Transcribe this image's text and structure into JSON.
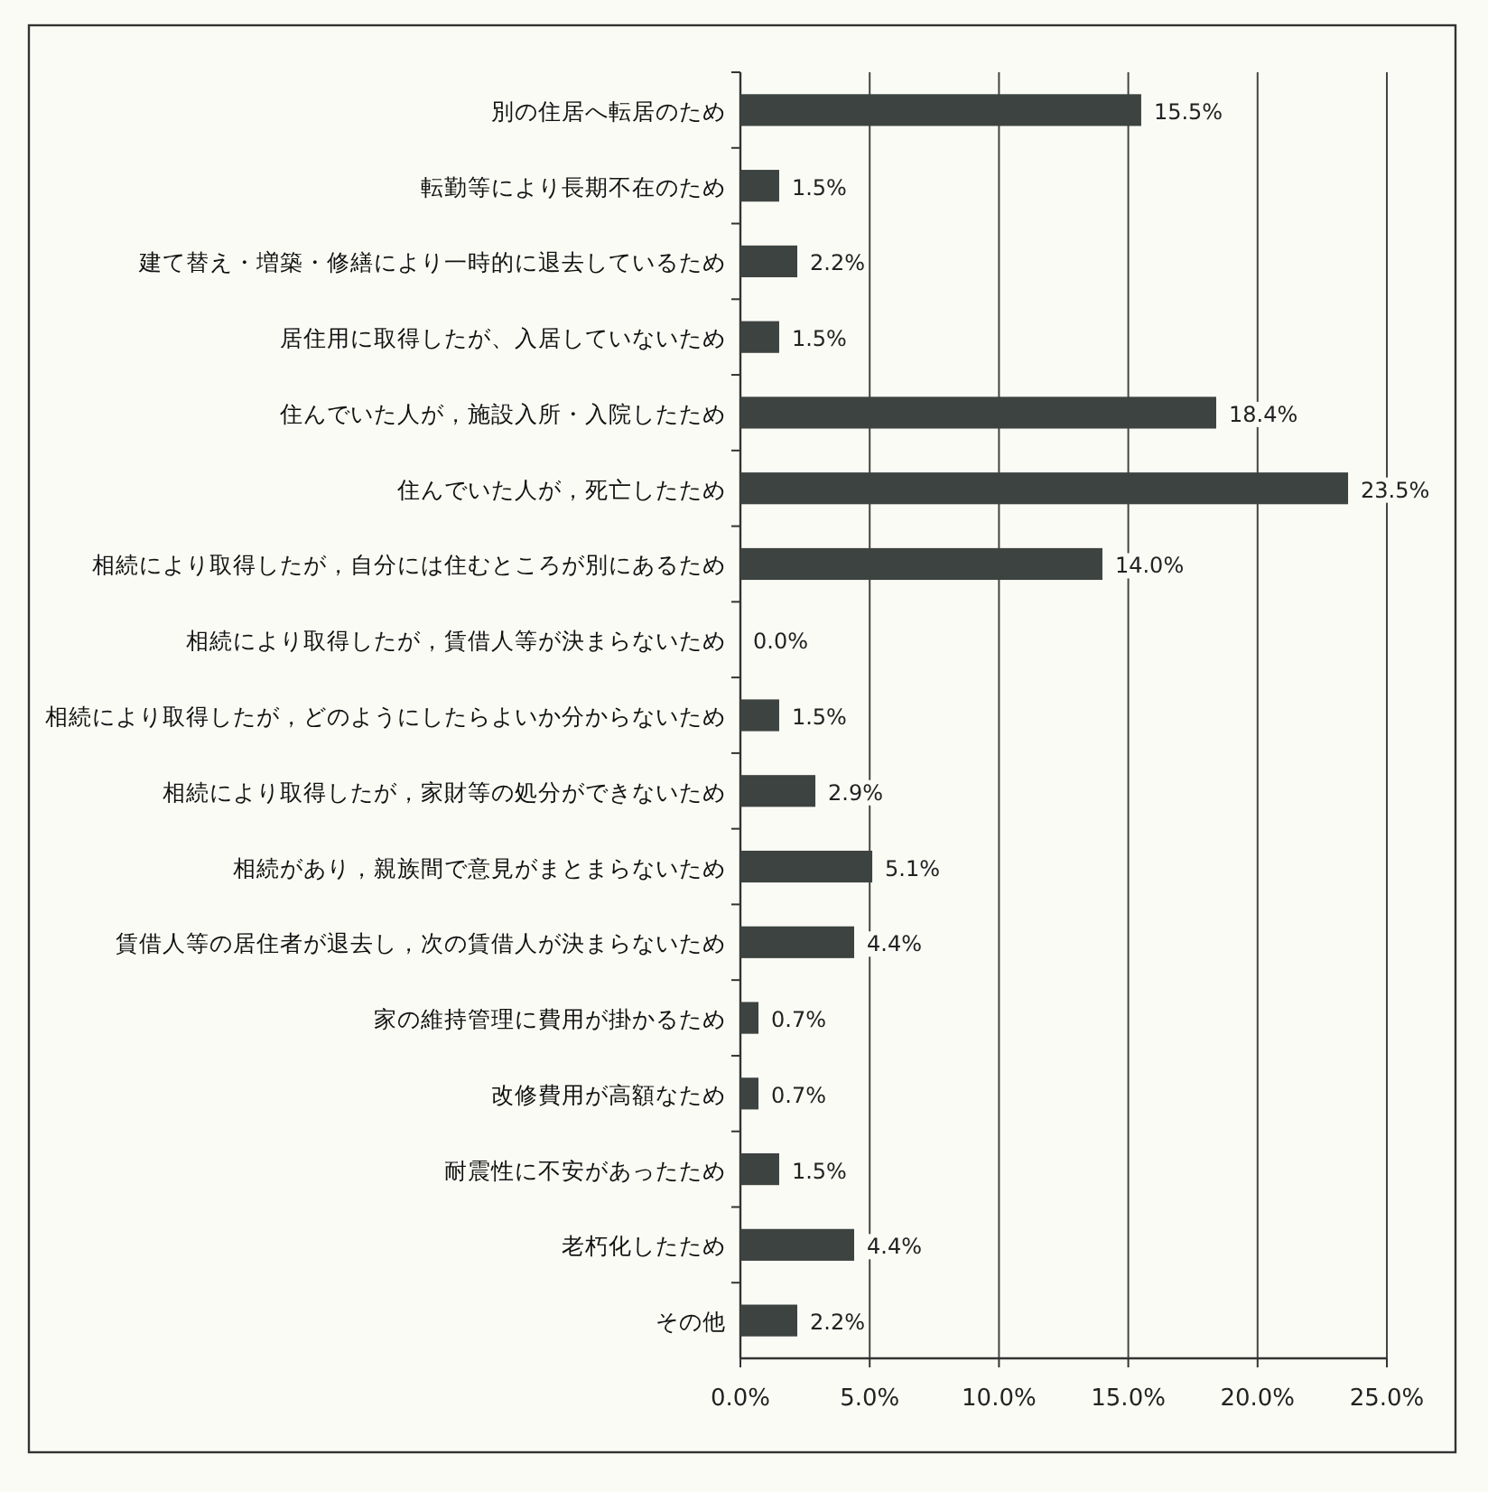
{
  "chart_data": {
    "type": "bar",
    "orientation": "horizontal",
    "categories": [
      "別の住居へ転居のため",
      "転勤等により長期不在のため",
      "建て替え・増築・修繕により一時的に退去しているため",
      "居住用に取得したが、入居していないため",
      "住んでいた人が，施設入所・入院したため",
      "住んでいた人が，死亡したため",
      "相続により取得したが，自分には住むところが別にあるため",
      "相続により取得したが，賃借人等が決まらないため",
      "相続により取得したが，どのようにしたらよいか分からないため",
      "相続により取得したが，家財等の処分ができないため",
      "相続があり，親族間で意見がまとまらないため",
      "賃借人等の居住者が退去し，次の賃借人が決まらないため",
      "家の維持管理に費用が掛かるため",
      "改修費用が高額なため",
      "耐震性に不安があったため",
      "老朽化したため",
      "その他"
    ],
    "values": [
      15.5,
      1.5,
      2.2,
      1.5,
      18.4,
      23.5,
      14.0,
      0.0,
      1.5,
      2.9,
      5.1,
      4.4,
      0.7,
      0.7,
      1.5,
      4.4,
      2.2
    ],
    "value_labels": [
      "15.5%",
      "1.5%",
      "2.2%",
      "1.5%",
      "18.4%",
      "23.5%",
      "14.0%",
      "0.0%",
      "1.5%",
      "2.9%",
      "5.1%",
      "4.4%",
      "0.7%",
      "0.7%",
      "1.5%",
      "4.4%",
      "2.2%"
    ],
    "color": "#3d4340",
    "xlim": [
      0,
      25
    ],
    "xticks": [
      {
        "value": 0,
        "label": "0.0%"
      },
      {
        "value": 5,
        "label": "5.0%"
      },
      {
        "value": 10,
        "label": "10.0%"
      },
      {
        "value": 15,
        "label": "15.0%"
      },
      {
        "value": 20,
        "label": "20.0%"
      },
      {
        "value": 25,
        "label": "25.0%"
      }
    ],
    "grid": "x"
  }
}
